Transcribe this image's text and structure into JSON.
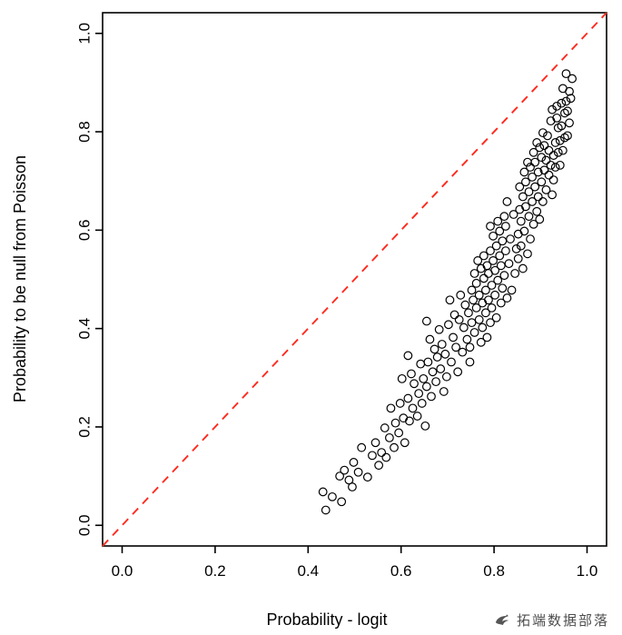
{
  "figure": {
    "background": "#ffffff"
  },
  "watermark": {
    "text": "拓端数据部落",
    "logo": "bird-swirl-logo"
  },
  "chart_data": {
    "type": "scatter",
    "title": "",
    "xlabel": "Probability - logit",
    "ylabel": "Probability to be null from Poisson",
    "xlim": [
      -0.042,
      1.042
    ],
    "ylim": [
      -0.042,
      1.042
    ],
    "xticks": [
      0.0,
      0.2,
      0.4,
      0.6,
      0.8,
      1.0
    ],
    "yticks": [
      0.0,
      0.2,
      0.4,
      0.6,
      0.8,
      1.0
    ],
    "grid": false,
    "legend": null,
    "marker": {
      "shape": "open-circle",
      "color": "#000000"
    },
    "reference_line": {
      "style": "dashed",
      "color": "#FF2A1E",
      "from": [
        -0.042,
        -0.042
      ],
      "to": [
        1.042,
        1.042
      ],
      "meaning": "y = x identity line"
    },
    "points": [
      [
        0.432,
        0.068
      ],
      [
        0.438,
        0.031
      ],
      [
        0.452,
        0.058
      ],
      [
        0.468,
        0.1
      ],
      [
        0.472,
        0.048
      ],
      [
        0.478,
        0.112
      ],
      [
        0.488,
        0.092
      ],
      [
        0.495,
        0.078
      ],
      [
        0.498,
        0.128
      ],
      [
        0.508,
        0.108
      ],
      [
        0.515,
        0.158
      ],
      [
        0.528,
        0.098
      ],
      [
        0.538,
        0.142
      ],
      [
        0.545,
        0.168
      ],
      [
        0.552,
        0.122
      ],
      [
        0.558,
        0.148
      ],
      [
        0.565,
        0.198
      ],
      [
        0.568,
        0.138
      ],
      [
        0.575,
        0.178
      ],
      [
        0.578,
        0.238
      ],
      [
        0.585,
        0.158
      ],
      [
        0.588,
        0.208
      ],
      [
        0.595,
        0.188
      ],
      [
        0.598,
        0.248
      ],
      [
        0.602,
        0.298
      ],
      [
        0.605,
        0.218
      ],
      [
        0.608,
        0.168
      ],
      [
        0.615,
        0.258
      ],
      [
        0.615,
        0.345
      ],
      [
        0.618,
        0.212
      ],
      [
        0.622,
        0.308
      ],
      [
        0.625,
        0.238
      ],
      [
        0.628,
        0.288
      ],
      [
        0.635,
        0.222
      ],
      [
        0.638,
        0.268
      ],
      [
        0.642,
        0.328
      ],
      [
        0.645,
        0.248
      ],
      [
        0.648,
        0.298
      ],
      [
        0.652,
        0.202
      ],
      [
        0.655,
        0.282
      ],
      [
        0.655,
        0.415
      ],
      [
        0.658,
        0.332
      ],
      [
        0.662,
        0.378
      ],
      [
        0.665,
        0.262
      ],
      [
        0.668,
        0.312
      ],
      [
        0.672,
        0.358
      ],
      [
        0.675,
        0.292
      ],
      [
        0.678,
        0.342
      ],
      [
        0.682,
        0.398
      ],
      [
        0.685,
        0.318
      ],
      [
        0.688,
        0.368
      ],
      [
        0.692,
        0.272
      ],
      [
        0.695,
        0.348
      ],
      [
        0.698,
        0.302
      ],
      [
        0.702,
        0.408
      ],
      [
        0.705,
        0.458
      ],
      [
        0.708,
        0.332
      ],
      [
        0.712,
        0.382
      ],
      [
        0.715,
        0.428
      ],
      [
        0.718,
        0.362
      ],
      [
        0.722,
        0.312
      ],
      [
        0.725,
        0.418
      ],
      [
        0.728,
        0.468
      ],
      [
        0.732,
        0.352
      ],
      [
        0.735,
        0.402
      ],
      [
        0.738,
        0.448
      ],
      [
        0.742,
        0.378
      ],
      [
        0.745,
        0.432
      ],
      [
        0.748,
        0.332
      ],
      [
        0.748,
        0.362
      ],
      [
        0.752,
        0.478
      ],
      [
        0.752,
        0.412
      ],
      [
        0.755,
        0.458
      ],
      [
        0.758,
        0.512
      ],
      [
        0.758,
        0.392
      ],
      [
        0.762,
        0.442
      ],
      [
        0.762,
        0.492
      ],
      [
        0.765,
        0.538
      ],
      [
        0.768,
        0.418
      ],
      [
        0.768,
        0.468
      ],
      [
        0.772,
        0.372
      ],
      [
        0.772,
        0.522
      ],
      [
        0.775,
        0.402
      ],
      [
        0.775,
        0.452
      ],
      [
        0.778,
        0.502
      ],
      [
        0.778,
        0.548
      ],
      [
        0.782,
        0.432
      ],
      [
        0.782,
        0.478
      ],
      [
        0.785,
        0.528
      ],
      [
        0.785,
        0.382
      ],
      [
        0.788,
        0.458
      ],
      [
        0.788,
        0.512
      ],
      [
        0.792,
        0.412
      ],
      [
        0.792,
        0.558
      ],
      [
        0.792,
        0.608
      ],
      [
        0.795,
        0.442
      ],
      [
        0.795,
        0.488
      ],
      [
        0.798,
        0.538
      ],
      [
        0.798,
        0.588
      ],
      [
        0.802,
        0.468
      ],
      [
        0.802,
        0.518
      ],
      [
        0.805,
        0.568
      ],
      [
        0.805,
        0.422
      ],
      [
        0.808,
        0.618
      ],
      [
        0.808,
        0.498
      ],
      [
        0.812,
        0.548
      ],
      [
        0.812,
        0.598
      ],
      [
        0.815,
        0.452
      ],
      [
        0.815,
        0.528
      ],
      [
        0.818,
        0.578
      ],
      [
        0.818,
        0.482
      ],
      [
        0.822,
        0.628
      ],
      [
        0.822,
        0.508
      ],
      [
        0.825,
        0.558
      ],
      [
        0.825,
        0.608
      ],
      [
        0.828,
        0.658
      ],
      [
        0.828,
        0.462
      ],
      [
        0.832,
        0.532
      ],
      [
        0.835,
        0.582
      ],
      [
        0.838,
        0.478
      ],
      [
        0.842,
        0.632
      ],
      [
        0.845,
        0.512
      ],
      [
        0.848,
        0.562
      ],
      [
        0.852,
        0.542
      ],
      [
        0.852,
        0.592
      ],
      [
        0.855,
        0.642
      ],
      [
        0.855,
        0.688
      ],
      [
        0.858,
        0.568
      ],
      [
        0.858,
        0.618
      ],
      [
        0.862,
        0.668
      ],
      [
        0.862,
        0.522
      ],
      [
        0.865,
        0.718
      ],
      [
        0.865,
        0.598
      ],
      [
        0.868,
        0.648
      ],
      [
        0.868,
        0.698
      ],
      [
        0.872,
        0.552
      ],
      [
        0.872,
        0.738
      ],
      [
        0.875,
        0.628
      ],
      [
        0.875,
        0.678
      ],
      [
        0.878,
        0.728
      ],
      [
        0.878,
        0.582
      ],
      [
        0.882,
        0.658
      ],
      [
        0.882,
        0.708
      ],
      [
        0.885,
        0.612
      ],
      [
        0.885,
        0.758
      ],
      [
        0.888,
        0.688
      ],
      [
        0.888,
        0.738
      ],
      [
        0.892,
        0.638
      ],
      [
        0.892,
        0.778
      ],
      [
        0.895,
        0.718
      ],
      [
        0.895,
        0.668
      ],
      [
        0.898,
        0.768
      ],
      [
        0.898,
        0.622
      ],
      [
        0.902,
        0.698
      ],
      [
        0.902,
        0.748
      ],
      [
        0.905,
        0.798
      ],
      [
        0.905,
        0.658
      ],
      [
        0.908,
        0.722
      ],
      [
        0.908,
        0.772
      ],
      [
        0.912,
        0.682
      ],
      [
        0.912,
        0.742
      ],
      [
        0.915,
        0.792
      ],
      [
        0.918,
        0.712
      ],
      [
        0.918,
        0.762
      ],
      [
        0.922,
        0.732
      ],
      [
        0.922,
        0.822
      ],
      [
        0.925,
        0.672
      ],
      [
        0.925,
        0.845
      ],
      [
        0.928,
        0.752
      ],
      [
        0.928,
        0.702
      ],
      [
        0.932,
        0.728
      ],
      [
        0.932,
        0.778
      ],
      [
        0.935,
        0.828
      ],
      [
        0.935,
        0.852
      ],
      [
        0.938,
        0.758
      ],
      [
        0.938,
        0.808
      ],
      [
        0.942,
        0.732
      ],
      [
        0.942,
        0.782
      ],
      [
        0.945,
        0.858
      ],
      [
        0.945,
        0.812
      ],
      [
        0.948,
        0.762
      ],
      [
        0.948,
        0.888
      ],
      [
        0.952,
        0.838
      ],
      [
        0.952,
        0.788
      ],
      [
        0.955,
        0.862
      ],
      [
        0.955,
        0.918
      ],
      [
        0.958,
        0.792
      ],
      [
        0.958,
        0.842
      ],
      [
        0.962,
        0.882
      ],
      [
        0.962,
        0.818
      ],
      [
        0.965,
        0.868
      ],
      [
        0.968,
        0.908
      ]
    ]
  }
}
